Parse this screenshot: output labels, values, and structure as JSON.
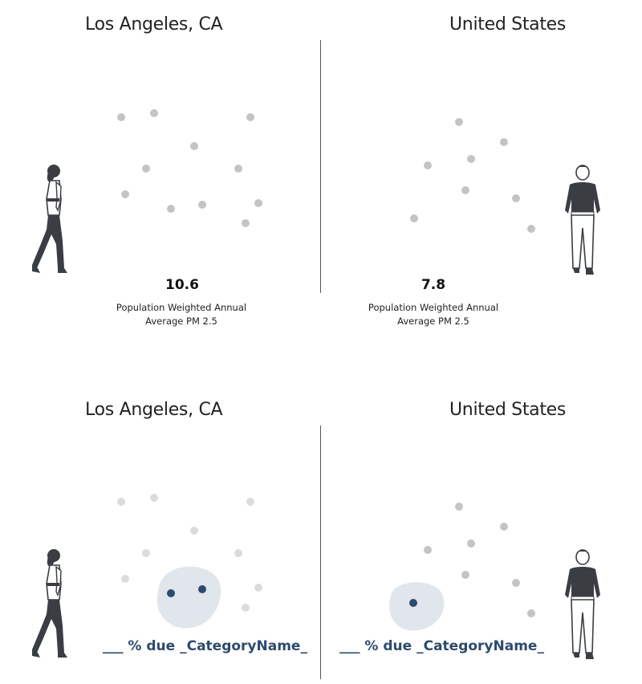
{
  "top": {
    "left_title": "Los Angeles, CA",
    "right_title": "United States",
    "left_value": "10.6",
    "right_value": "7.8",
    "left_caption_1": "Population Weighted Annual",
    "left_caption_2": "Average PM 2.5",
    "right_caption_1": "Population Weighted Annual",
    "right_caption_2": "Average PM 2.5"
  },
  "bottom": {
    "left_title": "Los Angeles, CA",
    "right_title": "United States",
    "left_due": "___ % due _CategoryName_",
    "right_due": "___ % due _CategoryName_"
  },
  "colors": {
    "dot": "#c4c4c4",
    "dot_faded": "#dcdcdc",
    "highlight_dot": "#2d4a6e",
    "blob": "#e1e6ec",
    "figure": "#3a3d42",
    "divider": "#555555"
  },
  "icons": [
    "woman-figure-icon",
    "man-figure-icon"
  ]
}
